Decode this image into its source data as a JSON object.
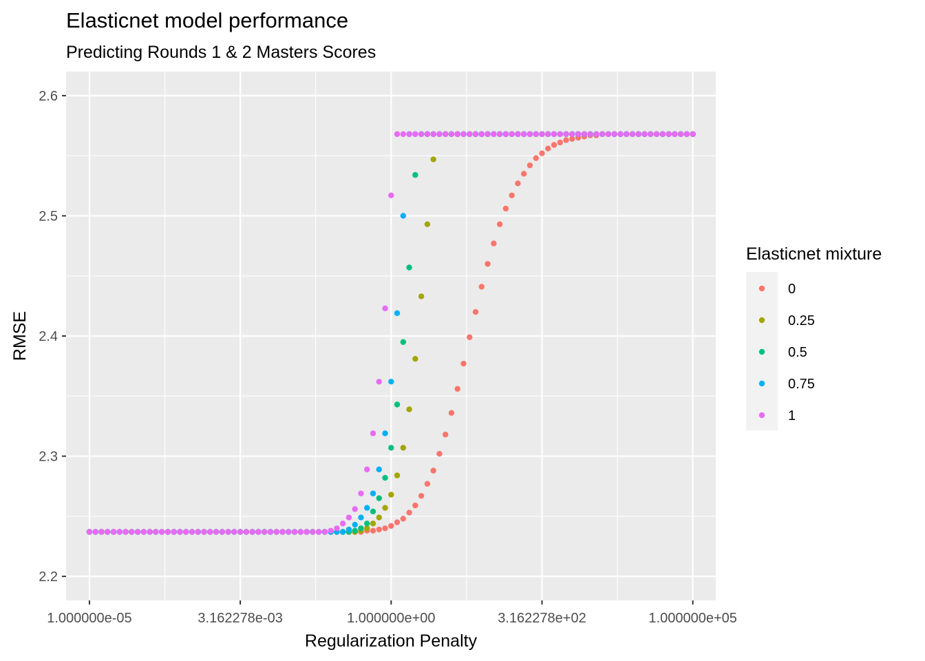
{
  "chart_data": {
    "type": "scatter",
    "title": "Elasticnet model performance",
    "subtitle": "Predicting Rounds 1 & 2 Masters Scores",
    "xlabel": "Regularization Penalty",
    "ylabel": "RMSE",
    "x_scale": "log10",
    "xlim": [
      4.1e-06,
      240000
    ],
    "ylim": [
      2.18,
      2.62
    ],
    "x_ticks": [
      1e-05,
      0.003162278,
      1,
      316.2278,
      100000
    ],
    "x_tick_labels": [
      "1.000000e-05",
      "3.162278e-03",
      "1.000000e+00",
      "3.162278e+02",
      "1.000000e+05"
    ],
    "y_ticks": [
      2.2,
      2.3,
      2.4,
      2.5,
      2.6
    ],
    "y_tick_labels": [
      "2.2",
      "2.3",
      "2.4",
      "2.5",
      "2.6"
    ],
    "grid": true,
    "background": "#ebebeb",
    "legend": {
      "title": "Elasticnet mixture",
      "position": "right"
    },
    "series": [
      {
        "name": "0",
        "color": "#F8766D",
        "log10_x_start": -5.0,
        "log10_x_step": 0.1,
        "y": [
          2.237,
          2.237,
          2.237,
          2.237,
          2.237,
          2.237,
          2.237,
          2.237,
          2.237,
          2.237,
          2.237,
          2.237,
          2.237,
          2.237,
          2.237,
          2.237,
          2.237,
          2.237,
          2.237,
          2.237,
          2.237,
          2.237,
          2.237,
          2.237,
          2.237,
          2.237,
          2.237,
          2.237,
          2.237,
          2.237,
          2.237,
          2.237,
          2.237,
          2.237,
          2.237,
          2.237,
          2.237,
          2.237,
          2.237,
          2.237,
          2.237,
          2.237,
          2.237,
          2.237,
          2.237,
          2.237,
          2.238,
          2.238,
          2.239,
          2.24,
          2.242,
          2.245,
          2.248,
          2.253,
          2.259,
          2.267,
          2.277,
          2.288,
          2.302,
          2.318,
          2.336,
          2.356,
          2.377,
          2.399,
          2.42,
          2.441,
          2.46,
          2.477,
          2.493,
          2.506,
          2.517,
          2.527,
          2.535,
          2.542,
          2.548,
          2.552,
          2.556,
          2.559,
          2.561,
          2.563,
          2.564,
          2.565,
          2.566,
          2.567,
          2.567,
          2.568,
          2.568,
          2.568,
          2.568,
          2.568,
          2.568,
          2.568,
          2.568,
          2.568,
          2.568,
          2.568,
          2.568,
          2.568,
          2.568,
          2.568,
          2.568
        ]
      },
      {
        "name": "0.25",
        "color": "#A3A500",
        "log10_x_start": -5.0,
        "log10_x_step": 0.1,
        "y": [
          2.237,
          2.237,
          2.237,
          2.237,
          2.237,
          2.237,
          2.237,
          2.237,
          2.237,
          2.237,
          2.237,
          2.237,
          2.237,
          2.237,
          2.237,
          2.237,
          2.237,
          2.237,
          2.237,
          2.237,
          2.237,
          2.237,
          2.237,
          2.237,
          2.237,
          2.237,
          2.237,
          2.237,
          2.237,
          2.237,
          2.237,
          2.237,
          2.237,
          2.237,
          2.237,
          2.237,
          2.237,
          2.237,
          2.237,
          2.237,
          2.237,
          2.237,
          2.237,
          2.237,
          2.237,
          2.238,
          2.24,
          2.244,
          2.249,
          2.257,
          2.268,
          2.284,
          2.307,
          2.339,
          2.381,
          2.433,
          2.493,
          2.547,
          2.568,
          2.568,
          2.568,
          2.568,
          2.568,
          2.568,
          2.568,
          2.568,
          2.568,
          2.568,
          2.568,
          2.568,
          2.568,
          2.568,
          2.568,
          2.568,
          2.568,
          2.568,
          2.568,
          2.568,
          2.568,
          2.568,
          2.568,
          2.568,
          2.568,
          2.568,
          2.568,
          2.568,
          2.568,
          2.568,
          2.568,
          2.568,
          2.568,
          2.568,
          2.568,
          2.568,
          2.568,
          2.568,
          2.568,
          2.568,
          2.568,
          2.568,
          2.568
        ]
      },
      {
        "name": "0.5",
        "color": "#00BF7D",
        "log10_x_start": -5.0,
        "log10_x_step": 0.1,
        "y": [
          2.237,
          2.237,
          2.237,
          2.237,
          2.237,
          2.237,
          2.237,
          2.237,
          2.237,
          2.237,
          2.237,
          2.237,
          2.237,
          2.237,
          2.237,
          2.237,
          2.237,
          2.237,
          2.237,
          2.237,
          2.237,
          2.237,
          2.237,
          2.237,
          2.237,
          2.237,
          2.237,
          2.237,
          2.237,
          2.237,
          2.237,
          2.237,
          2.237,
          2.237,
          2.237,
          2.237,
          2.237,
          2.237,
          2.237,
          2.237,
          2.237,
          2.237,
          2.237,
          2.237,
          2.238,
          2.24,
          2.244,
          2.254,
          2.265,
          2.282,
          2.307,
          2.343,
          2.395,
          2.457,
          2.534,
          2.568,
          2.568,
          2.568,
          2.568,
          2.568,
          2.568,
          2.568,
          2.568,
          2.568,
          2.568,
          2.568,
          2.568,
          2.568,
          2.568,
          2.568,
          2.568,
          2.568,
          2.568,
          2.568,
          2.568,
          2.568,
          2.568,
          2.568,
          2.568,
          2.568,
          2.568,
          2.568,
          2.568,
          2.568,
          2.568,
          2.568,
          2.568,
          2.568,
          2.568,
          2.568,
          2.568,
          2.568,
          2.568,
          2.568,
          2.568,
          2.568,
          2.568,
          2.568,
          2.568,
          2.568,
          2.568
        ]
      },
      {
        "name": "0.75",
        "color": "#00B0F6",
        "log10_x_start": -5.0,
        "log10_x_step": 0.1,
        "y": [
          2.237,
          2.237,
          2.237,
          2.237,
          2.237,
          2.237,
          2.237,
          2.237,
          2.237,
          2.237,
          2.237,
          2.237,
          2.237,
          2.237,
          2.237,
          2.237,
          2.237,
          2.237,
          2.237,
          2.237,
          2.237,
          2.237,
          2.237,
          2.237,
          2.237,
          2.237,
          2.237,
          2.237,
          2.237,
          2.237,
          2.237,
          2.237,
          2.237,
          2.237,
          2.237,
          2.237,
          2.237,
          2.237,
          2.237,
          2.237,
          2.237,
          2.237,
          2.237,
          2.239,
          2.243,
          2.249,
          2.257,
          2.269,
          2.289,
          2.319,
          2.362,
          2.419,
          2.5,
          2.568,
          2.568,
          2.568,
          2.568,
          2.568,
          2.568,
          2.568,
          2.568,
          2.568,
          2.568,
          2.568,
          2.568,
          2.568,
          2.568,
          2.568,
          2.568,
          2.568,
          2.568,
          2.568,
          2.568,
          2.568,
          2.568,
          2.568,
          2.568,
          2.568,
          2.568,
          2.568,
          2.568,
          2.568,
          2.568,
          2.568,
          2.568,
          2.568,
          2.568,
          2.568,
          2.568,
          2.568,
          2.568,
          2.568,
          2.568,
          2.568,
          2.568,
          2.568,
          2.568,
          2.568,
          2.568,
          2.568,
          2.568
        ]
      },
      {
        "name": "1",
        "color": "#E76BF3",
        "log10_x_start": -5.0,
        "log10_x_step": 0.1,
        "y": [
          2.237,
          2.237,
          2.237,
          2.237,
          2.237,
          2.237,
          2.237,
          2.237,
          2.237,
          2.237,
          2.237,
          2.237,
          2.237,
          2.237,
          2.237,
          2.237,
          2.237,
          2.237,
          2.237,
          2.237,
          2.237,
          2.237,
          2.237,
          2.237,
          2.237,
          2.237,
          2.237,
          2.237,
          2.237,
          2.237,
          2.237,
          2.237,
          2.237,
          2.237,
          2.237,
          2.237,
          2.237,
          2.237,
          2.237,
          2.237,
          2.238,
          2.24,
          2.244,
          2.249,
          2.256,
          2.269,
          2.289,
          2.319,
          2.362,
          2.423,
          2.517,
          2.568,
          2.568,
          2.568,
          2.568,
          2.568,
          2.568,
          2.568,
          2.568,
          2.568,
          2.568,
          2.568,
          2.568,
          2.568,
          2.568,
          2.568,
          2.568,
          2.568,
          2.568,
          2.568,
          2.568,
          2.568,
          2.568,
          2.568,
          2.568,
          2.568,
          2.568,
          2.568,
          2.568,
          2.568,
          2.568,
          2.568,
          2.568,
          2.568,
          2.568,
          2.568,
          2.568,
          2.568,
          2.568,
          2.568,
          2.568,
          2.568,
          2.568,
          2.568,
          2.568,
          2.568,
          2.568,
          2.568,
          2.568,
          2.568,
          2.568
        ]
      }
    ]
  }
}
